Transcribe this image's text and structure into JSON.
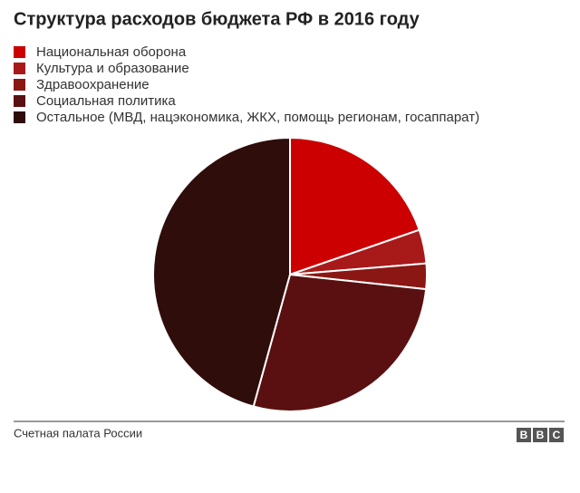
{
  "chart_data": {
    "type": "pie",
    "title": "Структура расходов бюджета РФ в 2016 году",
    "categories": [
      "Национальная оборона",
      "Культура и образование",
      "Здравоохранение",
      "Социальная политика",
      "Остальное (МВД, нацэкономика, ЖКХ, помощь регионам, госаппарат)"
    ],
    "values": [
      19.7,
      4,
      3,
      27.6,
      45.7
    ],
    "colors": [
      "#cc0000",
      "#a8191a",
      "#8a1714",
      "#5a1010",
      "#2f0d0b"
    ],
    "source": "Счетная палата России",
    "logo": [
      "B",
      "B",
      "C"
    ]
  }
}
